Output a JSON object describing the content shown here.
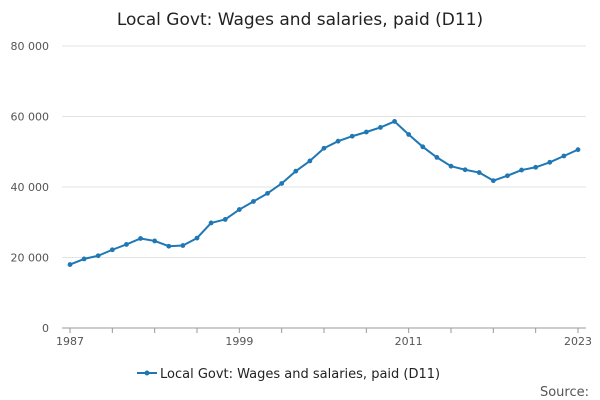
{
  "chart_data": {
    "type": "line",
    "title": "Local Govt: Wages and salaries, paid (D11)",
    "xlabel": "",
    "ylabel": "",
    "xlim": [
      1987,
      2023
    ],
    "ylim": [
      0,
      80000
    ],
    "y_ticks": [
      0,
      20000,
      40000,
      60000,
      80000
    ],
    "y_tick_labels": [
      "0",
      "20 000",
      "40 000",
      "60 000",
      "80 000"
    ],
    "x_ticks": [
      1987,
      1999,
      2011,
      2023
    ],
    "x_tick_labels": [
      "1987",
      "1999",
      "2011",
      "2023"
    ],
    "grid": true,
    "legend": "bottom-center",
    "colors": {
      "series": "#1f77b4"
    },
    "series": [
      {
        "name": "Local Govt: Wages and salaries, paid (D11)",
        "x": [
          1987,
          1988,
          1989,
          1990,
          1991,
          1992,
          1993,
          1994,
          1995,
          1996,
          1997,
          1998,
          1999,
          2000,
          2001,
          2002,
          2003,
          2004,
          2005,
          2006,
          2007,
          2008,
          2009,
          2010,
          2011,
          2012,
          2013,
          2014,
          2015,
          2016,
          2017,
          2018,
          2019,
          2020,
          2021,
          2022,
          2023
        ],
        "values": [
          18000,
          19600,
          20500,
          22200,
          23700,
          25400,
          24700,
          23200,
          23400,
          25500,
          29800,
          30800,
          33600,
          35900,
          38200,
          41000,
          44500,
          47400,
          51000,
          53000,
          54400,
          55600,
          56900,
          58600,
          54900,
          51400,
          48400,
          45900,
          44900,
          44100,
          41800,
          43200,
          44800,
          45600,
          47000,
          48800,
          50600
        ]
      }
    ],
    "source_label": "Source:"
  }
}
